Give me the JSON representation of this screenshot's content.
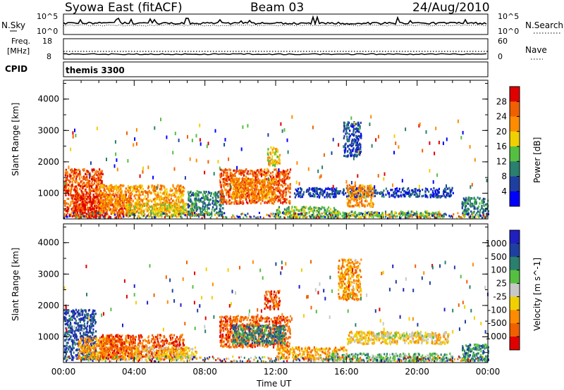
{
  "header": {
    "station": "Syowa East (fitACF)",
    "beam": "Beam 03",
    "date": "24/Aug/2010"
  },
  "noise_panel": {
    "left_label": "N.Sky",
    "right_label": "N.Search",
    "left_ticks": [
      "10^5",
      "10^0"
    ],
    "right_ticks": [
      "10^5",
      "10^0"
    ]
  },
  "freq_panel": {
    "left_label_1": "Freq.",
    "left_label_2": "[MHz]",
    "right_label": "Nave",
    "left_ticks": [
      "18",
      "8"
    ],
    "right_ticks": [
      "60",
      "0"
    ]
  },
  "cpid_panel": {
    "label": "CPID",
    "value": "themis 3300"
  },
  "colors": {
    "power_scale": [
      "#0000ff",
      "#1f3fa0",
      "#2a7f6e",
      "#55c040",
      "#f0d000",
      "#ff8c00",
      "#f06000",
      "#e00000"
    ],
    "velocity_scale": [
      "#e00000",
      "#f06000",
      "#ff8c00",
      "#f0d000",
      "#c8c8c8",
      "#55c040",
      "#2a7f6e",
      "#1f3fa0",
      "#2020c0"
    ]
  },
  "chart_data": [
    {
      "type": "heatmap",
      "name": "power",
      "ylabel": "Slant Range [km]",
      "xlabel": "Time UT",
      "y_ticks": [
        "1000",
        "2000",
        "3000",
        "4000"
      ],
      "x_ticks": [
        "00:00",
        "04:00",
        "08:00",
        "12:00",
        "16:00",
        "20:00",
        "00:00"
      ],
      "ylim": [
        180,
        4600
      ],
      "xlim_hours": [
        0,
        24
      ],
      "colorbar_label": "Power [dB]",
      "colorbar_ticks": [
        "4",
        "8",
        "12",
        "16",
        "20",
        "24",
        "28"
      ],
      "regions": [
        {
          "t0": 0.0,
          "t1": 2.2,
          "r0": 300,
          "r1": 1800,
          "c": 6
        },
        {
          "t0": 0.5,
          "t1": 3.8,
          "r0": 250,
          "r1": 1000,
          "c": 7
        },
        {
          "t0": 2.0,
          "t1": 6.8,
          "r0": 400,
          "r1": 1300,
          "c": 5
        },
        {
          "t0": 3.5,
          "t1": 7.5,
          "r0": 300,
          "r1": 700,
          "c": 4
        },
        {
          "t0": 7.0,
          "t1": 9.0,
          "r0": 300,
          "r1": 1100,
          "c": 2
        },
        {
          "t0": 8.8,
          "t1": 12.8,
          "r0": 700,
          "r1": 1800,
          "c": 6
        },
        {
          "t0": 9.5,
          "t1": 12.0,
          "r0": 850,
          "r1": 1500,
          "c": 5
        },
        {
          "t0": 12.0,
          "t1": 15.5,
          "r0": 250,
          "r1": 600,
          "c": 3
        },
        {
          "t0": 13.0,
          "t1": 22.0,
          "r0": 900,
          "r1": 1200,
          "c": 1
        },
        {
          "t0": 15.0,
          "t1": 21.5,
          "r0": 250,
          "r1": 450,
          "c": 3
        },
        {
          "t0": 15.8,
          "t1": 16.8,
          "r0": 2200,
          "r1": 3300,
          "c": 1
        },
        {
          "t0": 11.5,
          "t1": 12.2,
          "r0": 1900,
          "r1": 2500,
          "c": 4
        },
        {
          "t0": 16.0,
          "t1": 17.5,
          "r0": 600,
          "r1": 1300,
          "c": 5
        },
        {
          "t0": 22.5,
          "t1": 24.0,
          "r0": 250,
          "r1": 900,
          "c": 2
        }
      ]
    },
    {
      "type": "heatmap",
      "name": "velocity",
      "ylabel": "Slant Range [km]",
      "xlabel": "Time UT",
      "y_ticks": [
        "1000",
        "2000",
        "3000",
        "4000"
      ],
      "x_ticks": [
        "00:00",
        "04:00",
        "08:00",
        "12:00",
        "16:00",
        "20:00",
        "00:00"
      ],
      "ylim": [
        180,
        4600
      ],
      "xlim_hours": [
        0,
        24
      ],
      "colorbar_label": "Velocity [m s^-1]",
      "colorbar_ticks": [
        "1000",
        "500",
        "100",
        "25",
        "-25",
        "-100",
        "-500",
        "-1000"
      ],
      "regions": [
        {
          "t0": 0.0,
          "t1": 1.8,
          "r0": 300,
          "r1": 1900,
          "c": 7
        },
        {
          "t0": 0.8,
          "t1": 4.0,
          "r0": 300,
          "r1": 1000,
          "c": 2
        },
        {
          "t0": 2.0,
          "t1": 6.8,
          "r0": 350,
          "r1": 1100,
          "c": 1
        },
        {
          "t0": 4.0,
          "t1": 7.5,
          "r0": 300,
          "r1": 700,
          "c": 3
        },
        {
          "t0": 8.8,
          "t1": 12.8,
          "r0": 700,
          "r1": 1700,
          "c": 1
        },
        {
          "t0": 9.5,
          "t1": 12.5,
          "r0": 800,
          "r1": 1400,
          "c": 6
        },
        {
          "t0": 12.0,
          "t1": 16.0,
          "r0": 300,
          "r1": 700,
          "c": 2
        },
        {
          "t0": 15.5,
          "t1": 16.8,
          "r0": 2200,
          "r1": 3500,
          "c": 2
        },
        {
          "t0": 11.3,
          "t1": 12.2,
          "r0": 1900,
          "r1": 2500,
          "c": 1
        },
        {
          "t0": 16.0,
          "t1": 21.8,
          "r0": 800,
          "r1": 1200,
          "c": 3
        },
        {
          "t0": 17.5,
          "t1": 21.0,
          "r0": 1000,
          "r1": 1150,
          "c": 4
        },
        {
          "t0": 15.0,
          "t1": 22.0,
          "r0": 250,
          "r1": 500,
          "c": 5
        },
        {
          "t0": 22.5,
          "t1": 24.0,
          "r0": 250,
          "r1": 800,
          "c": 6
        }
      ]
    }
  ]
}
